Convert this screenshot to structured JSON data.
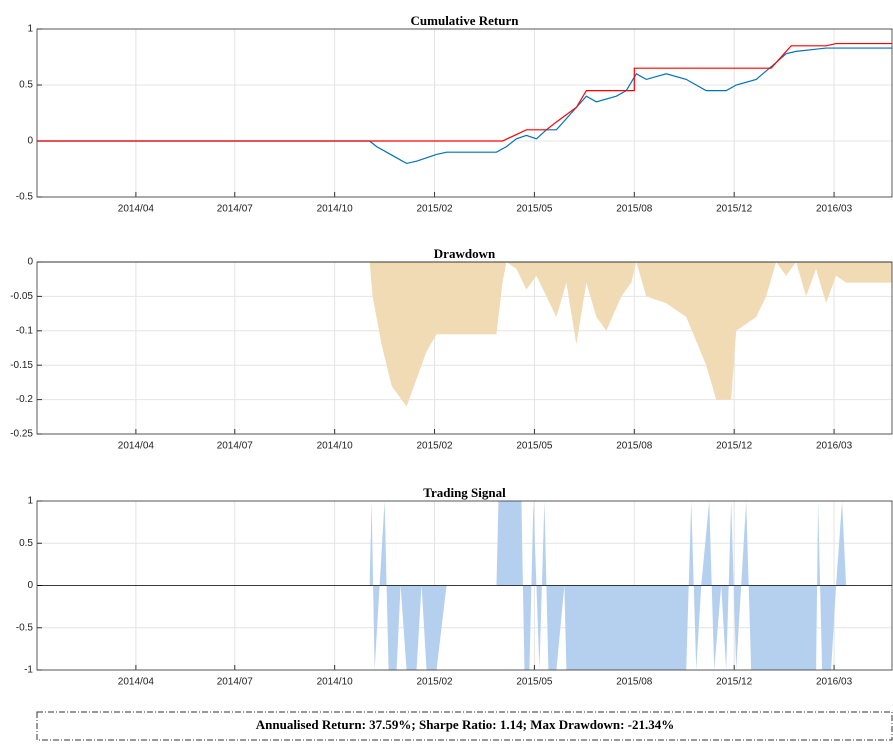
{
  "chart_data": [
    {
      "type": "line",
      "title": "Cumulative Return",
      "grid": true,
      "xlim": [
        0,
        856
      ],
      "ylim": [
        -0.5,
        1
      ],
      "yticks": [
        -0.5,
        0,
        0.5,
        1
      ],
      "xticks": [
        {
          "value": 99,
          "label": "2014/04"
        },
        {
          "value": 198,
          "label": "2014/07"
        },
        {
          "value": 298,
          "label": "2014/10"
        },
        {
          "value": 398,
          "label": "2015/02"
        },
        {
          "value": 498,
          "label": "2015/05"
        },
        {
          "value": 598,
          "label": "2015/08"
        },
        {
          "value": 698,
          "label": "2015/12"
        },
        {
          "value": 798,
          "label": "2016/03"
        }
      ],
      "series": [
        {
          "color": "#0072bd",
          "x": [
            0,
            333,
            340,
            350,
            360,
            370,
            380,
            390,
            400,
            410,
            460,
            470,
            480,
            490,
            500,
            510,
            520,
            530,
            540,
            550,
            560,
            580,
            590,
            600,
            610,
            630,
            650,
            670,
            690,
            700,
            720,
            740,
            750,
            760,
            780,
            790,
            856
          ],
          "values": [
            0,
            0,
            -0.05,
            -0.1,
            -0.15,
            -0.2,
            -0.18,
            -0.15,
            -0.12,
            -0.1,
            -0.1,
            -0.05,
            0.02,
            0.05,
            0.02,
            0.1,
            0.1,
            0.2,
            0.3,
            0.4,
            0.35,
            0.4,
            0.45,
            0.6,
            0.55,
            0.6,
            0.55,
            0.45,
            0.45,
            0.5,
            0.55,
            0.7,
            0.78,
            0.8,
            0.82,
            0.83,
            0.83
          ]
        },
        {
          "color": "#ff0000",
          "x": [
            0,
            466,
            478,
            490,
            510,
            520,
            540,
            550,
            598,
            598,
            735,
            745,
            755,
            790,
            800,
            856
          ],
          "values": [
            0,
            0,
            0.05,
            0.1,
            0.1,
            0.17,
            0.3,
            0.45,
            0.45,
            0.65,
            0.65,
            0.75,
            0.85,
            0.85,
            0.87,
            0.87
          ]
        }
      ]
    },
    {
      "type": "area",
      "title": "Drawdown",
      "grid": true,
      "xlim": [
        0,
        856
      ],
      "ylim": [
        -0.25,
        0
      ],
      "yticks": [
        -0.25,
        -0.2,
        -0.15,
        -0.1,
        -0.05,
        0
      ],
      "xticks": [
        {
          "value": 99,
          "label": "2014/04"
        },
        {
          "value": 198,
          "label": "2014/07"
        },
        {
          "value": 298,
          "label": "2014/10"
        },
        {
          "value": 398,
          "label": "2015/02"
        },
        {
          "value": 498,
          "label": "2015/05"
        },
        {
          "value": 598,
          "label": "2015/08"
        },
        {
          "value": 698,
          "label": "2015/12"
        },
        {
          "value": 798,
          "label": "2016/03"
        }
      ],
      "series": [
        {
          "color": "#f0dbb5",
          "x": [
            0,
            333,
            336,
            345,
            355,
            365,
            370,
            380,
            390,
            400,
            460,
            466,
            470,
            480,
            490,
            500,
            510,
            520,
            530,
            540,
            550,
            560,
            570,
            585,
            595,
            600,
            610,
            630,
            650,
            670,
            680,
            695,
            700,
            720,
            730,
            740,
            750,
            760,
            770,
            780,
            790,
            800,
            810,
            856
          ],
          "values": [
            0,
            0,
            -0.05,
            -0.12,
            -0.18,
            -0.2,
            -0.21,
            -0.17,
            -0.13,
            -0.105,
            -0.105,
            -0.03,
            0,
            -0.01,
            -0.04,
            -0.02,
            -0.05,
            -0.08,
            -0.03,
            -0.12,
            -0.03,
            -0.08,
            -0.1,
            -0.05,
            -0.03,
            0,
            -0.05,
            -0.06,
            -0.08,
            -0.15,
            -0.2,
            -0.2,
            -0.1,
            -0.08,
            -0.05,
            0,
            -0.02,
            0,
            -0.05,
            -0.01,
            -0.06,
            -0.02,
            -0.03,
            -0.03
          ]
        }
      ]
    },
    {
      "type": "area",
      "title": "Trading Signal",
      "grid": true,
      "xlim": [
        0,
        856
      ],
      "ylim": [
        -1,
        1
      ],
      "yticks": [
        -1,
        -0.5,
        0,
        0.5,
        1
      ],
      "xticks": [
        {
          "value": 99,
          "label": "2014/04"
        },
        {
          "value": 198,
          "label": "2014/07"
        },
        {
          "value": 298,
          "label": "2014/10"
        },
        {
          "value": 398,
          "label": "2015/02"
        },
        {
          "value": 498,
          "label": "2015/05"
        },
        {
          "value": 598,
          "label": "2015/08"
        },
        {
          "value": 698,
          "label": "2015/12"
        },
        {
          "value": 798,
          "label": "2016/03"
        }
      ],
      "series": [
        {
          "color": "#b5d0ef",
          "x": [
            0,
            333,
            335,
            338,
            343,
            348,
            352,
            360,
            364,
            370,
            380,
            385,
            390,
            400,
            410,
            460,
            462,
            485,
            488,
            493,
            497,
            503,
            508,
            512,
            520,
            528,
            530,
            650,
            655,
            660,
            665,
            673,
            678,
            685,
            690,
            695,
            700,
            705,
            710,
            715,
            730,
            740,
            780,
            782,
            786,
            795,
            800,
            806,
            810,
            856
          ],
          "values": [
            0,
            0,
            1,
            -1,
            0,
            1,
            -1,
            -1,
            0,
            -1,
            -1,
            0,
            -1,
            -1,
            0,
            0,
            1,
            1,
            -1,
            -1,
            1,
            -1,
            1,
            -1,
            -1,
            0,
            -1,
            -1,
            1,
            -1,
            0,
            1,
            -1,
            0,
            -1,
            1,
            -1,
            0,
            1,
            -1,
            -1,
            -1,
            -1,
            1,
            -1,
            -1,
            0,
            1,
            0,
            0
          ]
        }
      ]
    }
  ],
  "summary": "Annualised Return: 37.59%; Sharpe Ratio: 1.14; Max Drawdown: -21.34%"
}
